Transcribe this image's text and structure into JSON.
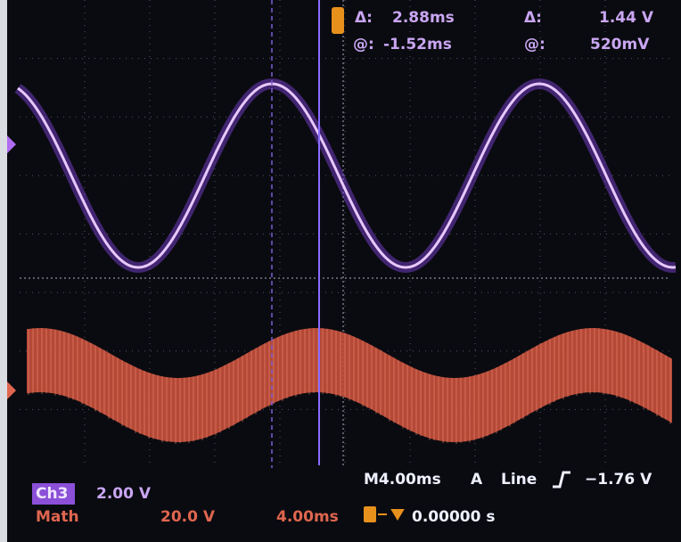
{
  "cursors": {
    "time_delta_label": "Δ:",
    "time_delta": "2.88ms",
    "time_at_label": "@:",
    "time_at": "-1.52ms",
    "volt_delta_label": "Δ:",
    "volt_delta": "1.44 V",
    "volt_at_label": "@:",
    "volt_at": "520mV"
  },
  "status": {
    "ch3_label": "Ch3",
    "ch3_scale": "2.00 V",
    "math_label": "Math",
    "math_scale": "20.0 V",
    "math_time": "4.00ms",
    "timebase": "M4.00ms",
    "trigger_mode": "A",
    "trigger_source": "Line",
    "trigger_level": "−1.76 V",
    "trigger_position": "0.00000 s"
  }
}
